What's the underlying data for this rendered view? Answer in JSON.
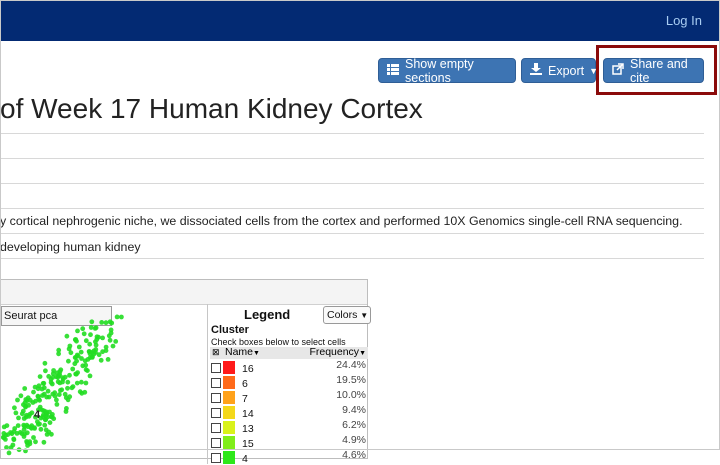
{
  "navbar": {
    "login_label": "Log In"
  },
  "toolbar": {
    "show_empty_label": "Show empty sections",
    "export_label": "Export",
    "share_label": "Share and cite"
  },
  "page": {
    "title": "of Week 17 Human Kidney Cortex",
    "description": "y cortical nephrogenic niche, we dissociated cells from the cortex and performed 10X Genomics single-cell RNA sequencing.",
    "description2": "developing human kidney"
  },
  "plot": {
    "projection_label": "Seurat pca",
    "cluster_marker": "4"
  },
  "legend": {
    "title": "Legend",
    "colors_label": "Colors",
    "group_label": "Cluster",
    "hint": "Check boxes below to select cells",
    "col_name": "Name",
    "col_freq": "Frequency",
    "rows": [
      {
        "name": "16",
        "freq": "24.4%",
        "color": "#ff1a1a"
      },
      {
        "name": "6",
        "freq": "19.5%",
        "color": "#ff6a1a"
      },
      {
        "name": "7",
        "freq": "10.0%",
        "color": "#ffa21a"
      },
      {
        "name": "14",
        "freq": "9.4%",
        "color": "#f4d81a"
      },
      {
        "name": "13",
        "freq": "6.2%",
        "color": "#d9f21a"
      },
      {
        "name": "15",
        "freq": "4.9%",
        "color": "#80ee1a"
      },
      {
        "name": "4",
        "freq": "4.6%",
        "color": "#2ee81a"
      }
    ]
  },
  "colors": {
    "navbar": "#032a73",
    "button": "#3d74b3",
    "highlight": "#8b0b0b",
    "points": "#22dd22"
  }
}
